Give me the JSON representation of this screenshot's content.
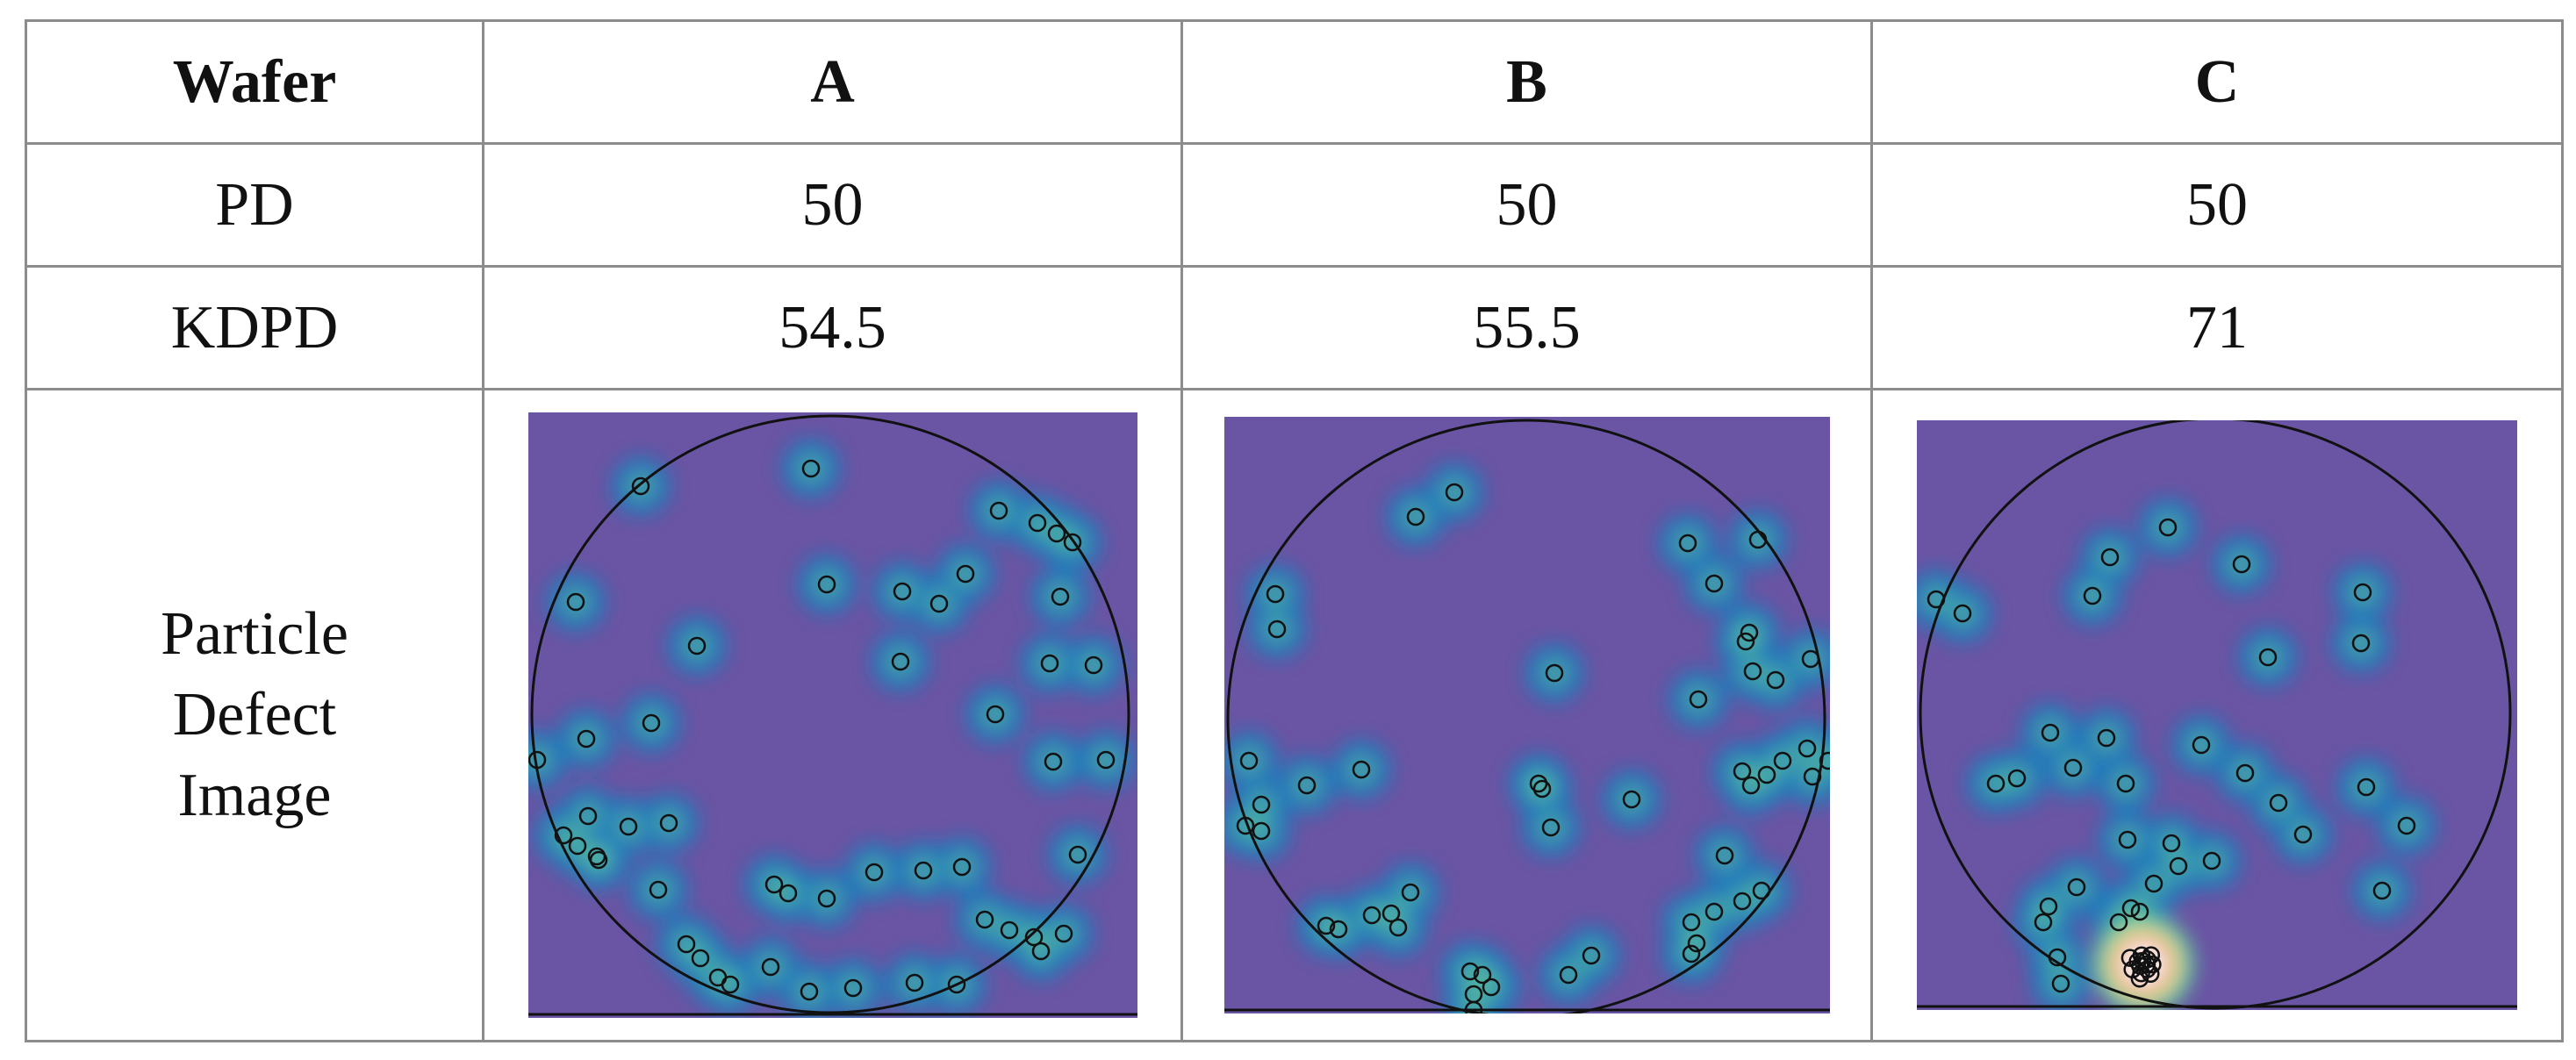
{
  "table": {
    "header": {
      "label": "Wafer",
      "cols": [
        "A",
        "B",
        "C"
      ]
    },
    "rows": [
      {
        "label": "PD",
        "values": [
          "50",
          "50",
          "50"
        ]
      },
      {
        "label": "KDPD",
        "values": [
          "54.5",
          "55.5",
          "71"
        ]
      }
    ],
    "image_row": {
      "label_lines": [
        "Particle",
        "Defect",
        "Image"
      ]
    }
  },
  "colors": {
    "background": "#6a55a4",
    "density_low": "#1b7cbc",
    "density_mid": "#5ebf9a",
    "density_high": "#f2f29b",
    "hotspot": "#e63c2a",
    "outline": "#111111",
    "grid": "#8c8c8c"
  }
}
